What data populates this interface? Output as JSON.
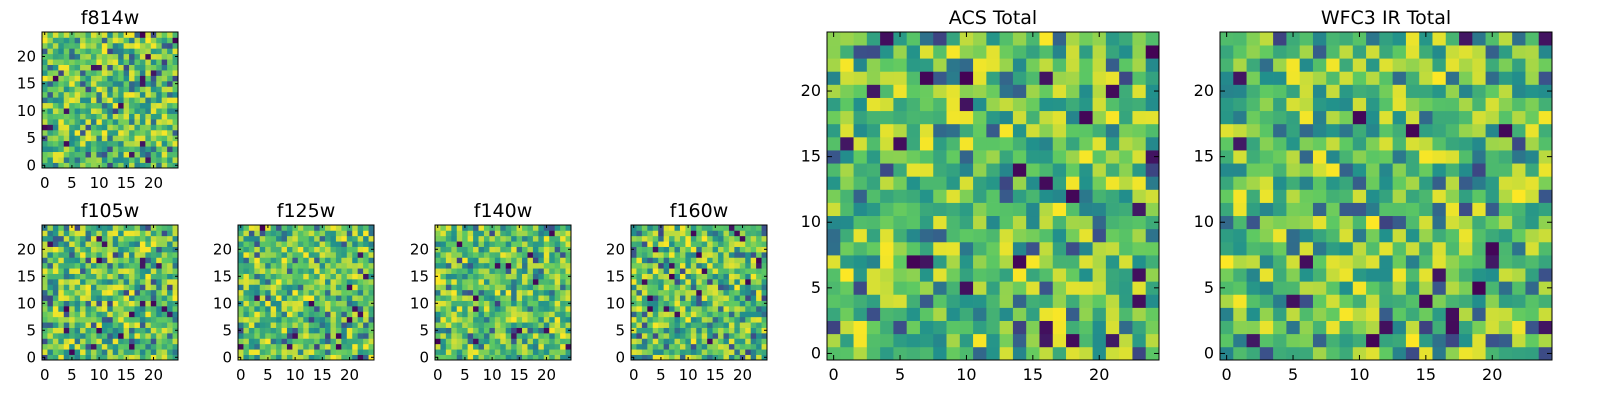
{
  "chart_data": [
    {
      "type": "heatmap",
      "title": "f814w",
      "grid_size": 25,
      "xlim": [
        0,
        24
      ],
      "ylim": [
        0,
        24
      ],
      "xticks": [
        0,
        5,
        10,
        15,
        20
      ],
      "yticks": [
        0,
        5,
        10,
        15,
        20
      ],
      "seed": 17,
      "colormap": "viridis",
      "value_range": [
        0,
        1
      ]
    },
    {
      "type": "heatmap",
      "title": "f105w",
      "grid_size": 25,
      "xlim": [
        0,
        24
      ],
      "ylim": [
        0,
        24
      ],
      "xticks": [
        0,
        5,
        10,
        15,
        20
      ],
      "yticks": [
        0,
        5,
        10,
        15,
        20
      ],
      "seed": 23,
      "colormap": "viridis",
      "value_range": [
        0,
        1
      ]
    },
    {
      "type": "heatmap",
      "title": "f125w",
      "grid_size": 25,
      "xlim": [
        0,
        24
      ],
      "ylim": [
        0,
        24
      ],
      "xticks": [
        0,
        5,
        10,
        15,
        20
      ],
      "yticks": [
        0,
        5,
        10,
        15,
        20
      ],
      "seed": 31,
      "colormap": "viridis",
      "value_range": [
        0,
        1
      ]
    },
    {
      "type": "heatmap",
      "title": "f140w",
      "grid_size": 25,
      "xlim": [
        0,
        24
      ],
      "ylim": [
        0,
        24
      ],
      "xticks": [
        0,
        5,
        10,
        15,
        20
      ],
      "yticks": [
        0,
        5,
        10,
        15,
        20
      ],
      "seed": 41,
      "colormap": "viridis",
      "value_range": [
        0,
        1
      ]
    },
    {
      "type": "heatmap",
      "title": "f160w",
      "grid_size": 25,
      "xlim": [
        0,
        24
      ],
      "ylim": [
        0,
        24
      ],
      "xticks": [
        0,
        5,
        10,
        15,
        20
      ],
      "yticks": [
        0,
        5,
        10,
        15,
        20
      ],
      "seed": 53,
      "colormap": "viridis",
      "value_range": [
        0,
        1
      ]
    },
    {
      "type": "heatmap",
      "title": "ACS Total",
      "grid_size": 25,
      "xlim": [
        0,
        24
      ],
      "ylim": [
        0,
        24
      ],
      "xticks": [
        0,
        5,
        10,
        15,
        20
      ],
      "yticks": [
        0,
        5,
        10,
        15,
        20
      ],
      "seed": 67,
      "colormap": "viridis",
      "value_range": [
        0,
        1
      ]
    },
    {
      "type": "heatmap",
      "title": "WFC3 IR Total",
      "grid_size": 25,
      "xlim": [
        0,
        24
      ],
      "ylim": [
        0,
        24
      ],
      "xticks": [
        0,
        5,
        10,
        15,
        20
      ],
      "yticks": [
        0,
        5,
        10,
        15,
        20
      ],
      "seed": 79,
      "colormap": "viridis",
      "value_range": [
        0,
        1
      ]
    }
  ],
  "colors": {
    "viridis_stops": [
      "#440154",
      "#3b528b",
      "#21918c",
      "#5ec962",
      "#fde725"
    ]
  }
}
